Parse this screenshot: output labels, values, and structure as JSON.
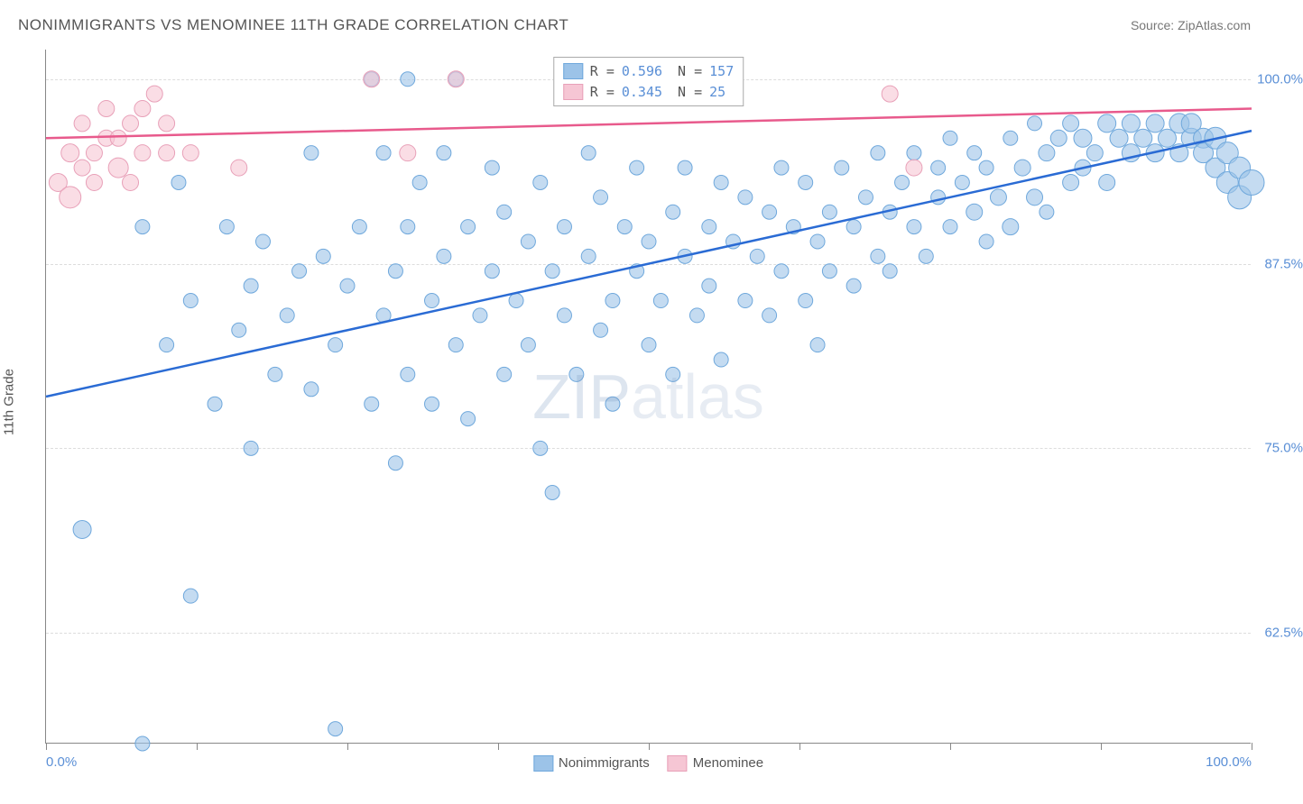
{
  "title": "NONIMMIGRANTS VS MENOMINEE 11TH GRADE CORRELATION CHART",
  "source": "Source: ZipAtlas.com",
  "y_axis_label": "11th Grade",
  "watermark_a": "ZIP",
  "watermark_b": "atlas",
  "chart": {
    "type": "scatter",
    "xlim": [
      0,
      100
    ],
    "ylim": [
      55,
      102
    ],
    "y_ticks": [
      62.5,
      75.0,
      87.5,
      100.0
    ],
    "y_tick_labels": [
      "62.5%",
      "75.0%",
      "87.5%",
      "100.0%"
    ],
    "x_ticks": [
      0,
      12.5,
      25,
      37.5,
      50,
      62.5,
      75,
      87.5,
      100
    ],
    "x_labels": {
      "0": "0.0%",
      "100": "100.0%"
    },
    "grid_color": "#dddddd",
    "axis_color": "#888888",
    "background": "#ffffff",
    "series": [
      {
        "name": "Nonimmigrants",
        "color": "#9cc3e8",
        "stroke": "#6fa8dc",
        "line_color": "#2a6bd4",
        "r_value": "0.596",
        "n_value": "157",
        "trend": {
          "x1": 0,
          "y1": 78.5,
          "x2": 100,
          "y2": 96.5
        },
        "points": [
          [
            3,
            69.5,
            10
          ],
          [
            8,
            90,
            8
          ],
          [
            8,
            55,
            8
          ],
          [
            10,
            82,
            8
          ],
          [
            11,
            93,
            8
          ],
          [
            12,
            65,
            8
          ],
          [
            12,
            85,
            8
          ],
          [
            14,
            78,
            8
          ],
          [
            15,
            90,
            8
          ],
          [
            16,
            83,
            8
          ],
          [
            17,
            86,
            8
          ],
          [
            17,
            75,
            8
          ],
          [
            18,
            89,
            8
          ],
          [
            19,
            80,
            8
          ],
          [
            20,
            84,
            8
          ],
          [
            21,
            87,
            8
          ],
          [
            22,
            79,
            8
          ],
          [
            22,
            95,
            8
          ],
          [
            23,
            88,
            8
          ],
          [
            24,
            56,
            8
          ],
          [
            24,
            82,
            8
          ],
          [
            25,
            86,
            8
          ],
          [
            26,
            90,
            8
          ],
          [
            27,
            78,
            8
          ],
          [
            27,
            100,
            8
          ],
          [
            28,
            84,
            8
          ],
          [
            28,
            95,
            8
          ],
          [
            29,
            87,
            8
          ],
          [
            29,
            74,
            8
          ],
          [
            30,
            80,
            8
          ],
          [
            30,
            100,
            8
          ],
          [
            30,
            90,
            8
          ],
          [
            31,
            93,
            8
          ],
          [
            32,
            85,
            8
          ],
          [
            32,
            78,
            8
          ],
          [
            33,
            88,
            8
          ],
          [
            33,
            95,
            8
          ],
          [
            34,
            100,
            8
          ],
          [
            34,
            82,
            8
          ],
          [
            35,
            90,
            8
          ],
          [
            35,
            77,
            8
          ],
          [
            36,
            84,
            8
          ],
          [
            37,
            94,
            8
          ],
          [
            37,
            87,
            8
          ],
          [
            38,
            80,
            8
          ],
          [
            38,
            91,
            8
          ],
          [
            39,
            85,
            8
          ],
          [
            40,
            89,
            8
          ],
          [
            40,
            82,
            8
          ],
          [
            41,
            75,
            8
          ],
          [
            41,
            93,
            8
          ],
          [
            42,
            72,
            8
          ],
          [
            42,
            87,
            8
          ],
          [
            43,
            84,
            8
          ],
          [
            43,
            90,
            8
          ],
          [
            44,
            80,
            8
          ],
          [
            45,
            95,
            8
          ],
          [
            45,
            88,
            8
          ],
          [
            46,
            83,
            8
          ],
          [
            46,
            92,
            8
          ],
          [
            47,
            85,
            8
          ],
          [
            47,
            78,
            8
          ],
          [
            48,
            90,
            8
          ],
          [
            49,
            87,
            8
          ],
          [
            49,
            94,
            8
          ],
          [
            50,
            82,
            8
          ],
          [
            50,
            89,
            8
          ],
          [
            51,
            85,
            8
          ],
          [
            52,
            91,
            8
          ],
          [
            52,
            80,
            8
          ],
          [
            53,
            88,
            8
          ],
          [
            53,
            94,
            8
          ],
          [
            54,
            84,
            8
          ],
          [
            55,
            90,
            8
          ],
          [
            55,
            86,
            8
          ],
          [
            56,
            93,
            8
          ],
          [
            56,
            81,
            8
          ],
          [
            57,
            89,
            8
          ],
          [
            58,
            85,
            8
          ],
          [
            58,
            92,
            8
          ],
          [
            59,
            88,
            8
          ],
          [
            60,
            84,
            8
          ],
          [
            60,
            91,
            8
          ],
          [
            61,
            94,
            8
          ],
          [
            61,
            87,
            8
          ],
          [
            62,
            90,
            8
          ],
          [
            63,
            85,
            8
          ],
          [
            63,
            93,
            8
          ],
          [
            64,
            89,
            8
          ],
          [
            64,
            82,
            8
          ],
          [
            65,
            91,
            8
          ],
          [
            65,
            87,
            8
          ],
          [
            66,
            94,
            8
          ],
          [
            67,
            90,
            8
          ],
          [
            67,
            86,
            8
          ],
          [
            68,
            92,
            8
          ],
          [
            69,
            88,
            8
          ],
          [
            69,
            95,
            8
          ],
          [
            70,
            91,
            8
          ],
          [
            70,
            87,
            8
          ],
          [
            71,
            93,
            8
          ],
          [
            72,
            90,
            8
          ],
          [
            72,
            95,
            8
          ],
          [
            73,
            88,
            8
          ],
          [
            74,
            92,
            8
          ],
          [
            74,
            94,
            8
          ],
          [
            75,
            90,
            8
          ],
          [
            75,
            96,
            8
          ],
          [
            76,
            93,
            8
          ],
          [
            77,
            91,
            9
          ],
          [
            77,
            95,
            8
          ],
          [
            78,
            89,
            8
          ],
          [
            78,
            94,
            8
          ],
          [
            79,
            92,
            9
          ],
          [
            80,
            96,
            8
          ],
          [
            80,
            90,
            9
          ],
          [
            81,
            94,
            9
          ],
          [
            82,
            92,
            9
          ],
          [
            82,
            97,
            8
          ],
          [
            83,
            95,
            9
          ],
          [
            83,
            91,
            8
          ],
          [
            84,
            96,
            9
          ],
          [
            85,
            93,
            9
          ],
          [
            85,
            97,
            9
          ],
          [
            86,
            94,
            9
          ],
          [
            86,
            96,
            10
          ],
          [
            87,
            95,
            9
          ],
          [
            88,
            97,
            10
          ],
          [
            88,
            93,
            9
          ],
          [
            89,
            96,
            10
          ],
          [
            90,
            95,
            10
          ],
          [
            90,
            97,
            10
          ],
          [
            91,
            96,
            10
          ],
          [
            92,
            97,
            10
          ],
          [
            92,
            95,
            10
          ],
          [
            93,
            96,
            10
          ],
          [
            94,
            97,
            11
          ],
          [
            94,
            95,
            10
          ],
          [
            95,
            96,
            11
          ],
          [
            95,
            97,
            11
          ],
          [
            96,
            96,
            11
          ],
          [
            96,
            95,
            11
          ],
          [
            97,
            96,
            12
          ],
          [
            97,
            94,
            11
          ],
          [
            98,
            95,
            12
          ],
          [
            98,
            93,
            12
          ],
          [
            99,
            94,
            12
          ],
          [
            99,
            92,
            13
          ],
          [
            100,
            93,
            14
          ]
        ]
      },
      {
        "name": "Menominee",
        "color": "#f6c6d4",
        "stroke": "#e8a0b8",
        "line_color": "#e85a8c",
        "r_value": "0.345",
        "n_value": " 25",
        "trend": {
          "x1": 0,
          "y1": 96.0,
          "x2": 100,
          "y2": 98.0
        },
        "points": [
          [
            1,
            93,
            10
          ],
          [
            2,
            95,
            10
          ],
          [
            2,
            92,
            12
          ],
          [
            3,
            94,
            9
          ],
          [
            3,
            97,
            9
          ],
          [
            4,
            95,
            9
          ],
          [
            4,
            93,
            9
          ],
          [
            5,
            96,
            9
          ],
          [
            5,
            98,
            9
          ],
          [
            6,
            94,
            11
          ],
          [
            6,
            96,
            9
          ],
          [
            7,
            97,
            9
          ],
          [
            7,
            93,
            9
          ],
          [
            8,
            95,
            9
          ],
          [
            8,
            98,
            9
          ],
          [
            9,
            99,
            9
          ],
          [
            10,
            95,
            9
          ],
          [
            10,
            97,
            9
          ],
          [
            12,
            95,
            9
          ],
          [
            16,
            94,
            9
          ],
          [
            27,
            100,
            9
          ],
          [
            30,
            95,
            9
          ],
          [
            34,
            100,
            9
          ],
          [
            70,
            99,
            9
          ],
          [
            72,
            94,
            9
          ]
        ]
      }
    ]
  },
  "bottom_legend": [
    {
      "label": "Nonimmigrants",
      "fill": "#9cc3e8",
      "border": "#6fa8dc"
    },
    {
      "label": "Menominee",
      "fill": "#f6c6d4",
      "border": "#e8a0b8"
    }
  ]
}
